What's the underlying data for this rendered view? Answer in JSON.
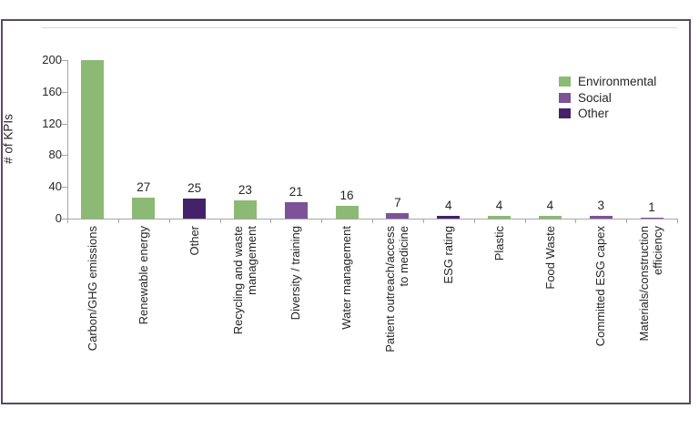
{
  "chart_data": {
    "type": "bar",
    "title": "",
    "xlabel": "",
    "ylabel": "# of KPIs",
    "ylim": [
      0,
      200
    ],
    "yticks": [
      0,
      40,
      80,
      120,
      160,
      200
    ],
    "grid": false,
    "legend_position": "top-right",
    "legend_entries": [
      "Environmental",
      "Social",
      "Other"
    ],
    "series_colors": {
      "Environmental": "#8CBA74",
      "Social": "#7D5299",
      "Other": "#44226A"
    },
    "categories": [
      "Carbon/GHG emissions",
      "Renewable energy",
      "Other",
      "Recycling and waste\nmanagement",
      "Diversity / training",
      "Water management",
      "Patient outreach/access\nto medicine",
      "ESG rating",
      "Plastic",
      "Food Waste",
      "Committed ESG capex",
      "Materials/construction\nefficiency"
    ],
    "bar_series": [
      "Environmental",
      "Environmental",
      "Other",
      "Environmental",
      "Social",
      "Environmental",
      "Social",
      "Other",
      "Environmental",
      "Environmental",
      "Social",
      "Social"
    ],
    "values": [
      200,
      27,
      25,
      23,
      21,
      16,
      7,
      4,
      4,
      4,
      3,
      1
    ],
    "data_labels": [
      null,
      "27",
      "25",
      "23",
      "21",
      "16",
      "7",
      "4",
      "4",
      "4",
      "3",
      "1"
    ]
  },
  "frame": {
    "border_color": "#594a63"
  }
}
